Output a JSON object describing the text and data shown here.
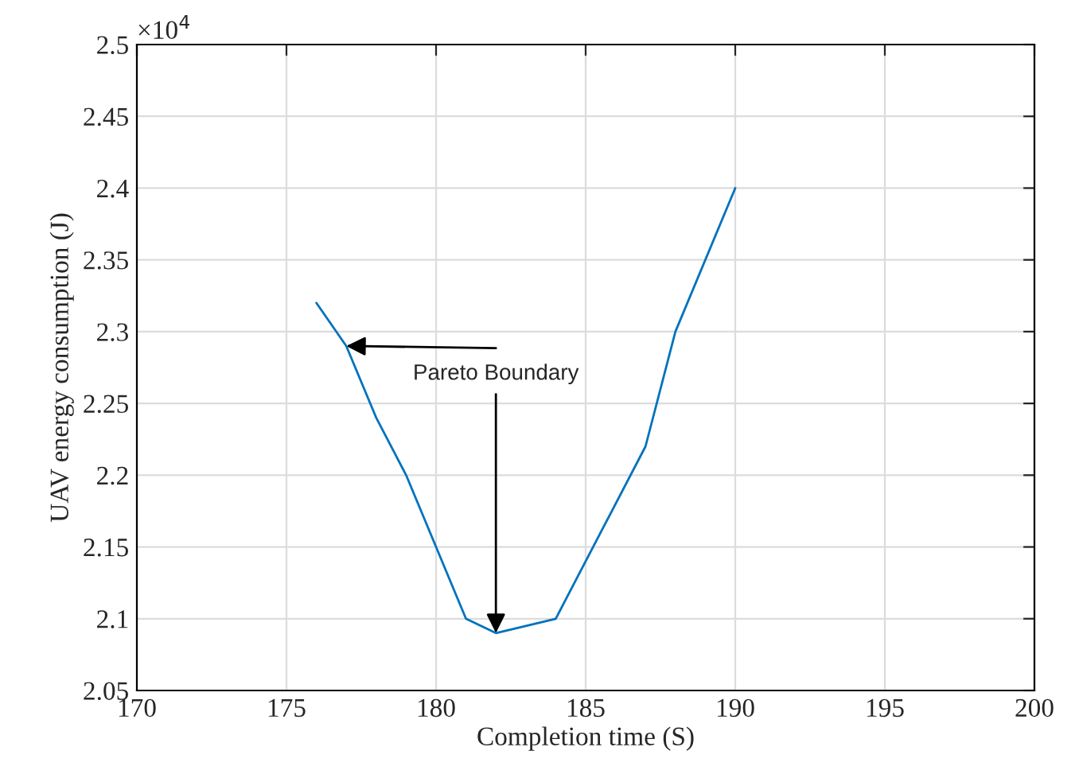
{
  "chart_data": {
    "type": "line",
    "xlabel": "Completion time (S)",
    "ylabel": "UAV energy consumption (J)",
    "x": [
      176,
      177,
      178,
      179,
      181,
      182,
      184,
      187,
      188,
      190
    ],
    "series": [
      {
        "color": "#0072bd",
        "values": [
          2.32,
          2.29,
          2.24,
          2.2,
          2.1,
          2.09,
          2.1,
          2.22,
          2.3,
          2.4
        ]
      }
    ],
    "xlim": [
      170,
      200
    ],
    "xticks": [
      170,
      175,
      180,
      185,
      190,
      195,
      200
    ],
    "ylim": [
      2.05,
      2.5
    ],
    "yticks": [
      2.05,
      2.1,
      2.15,
      2.2,
      2.25,
      2.3,
      2.35,
      2.4,
      2.45,
      2.5
    ],
    "annotations": [
      "×10$^{4}$",
      {
        "text": "Pareto Boundary",
        "x": 182,
        "y": 2.09
      }
    ],
    "grid": true,
    "marker": "none",
    "line_style": "solid"
  }
}
